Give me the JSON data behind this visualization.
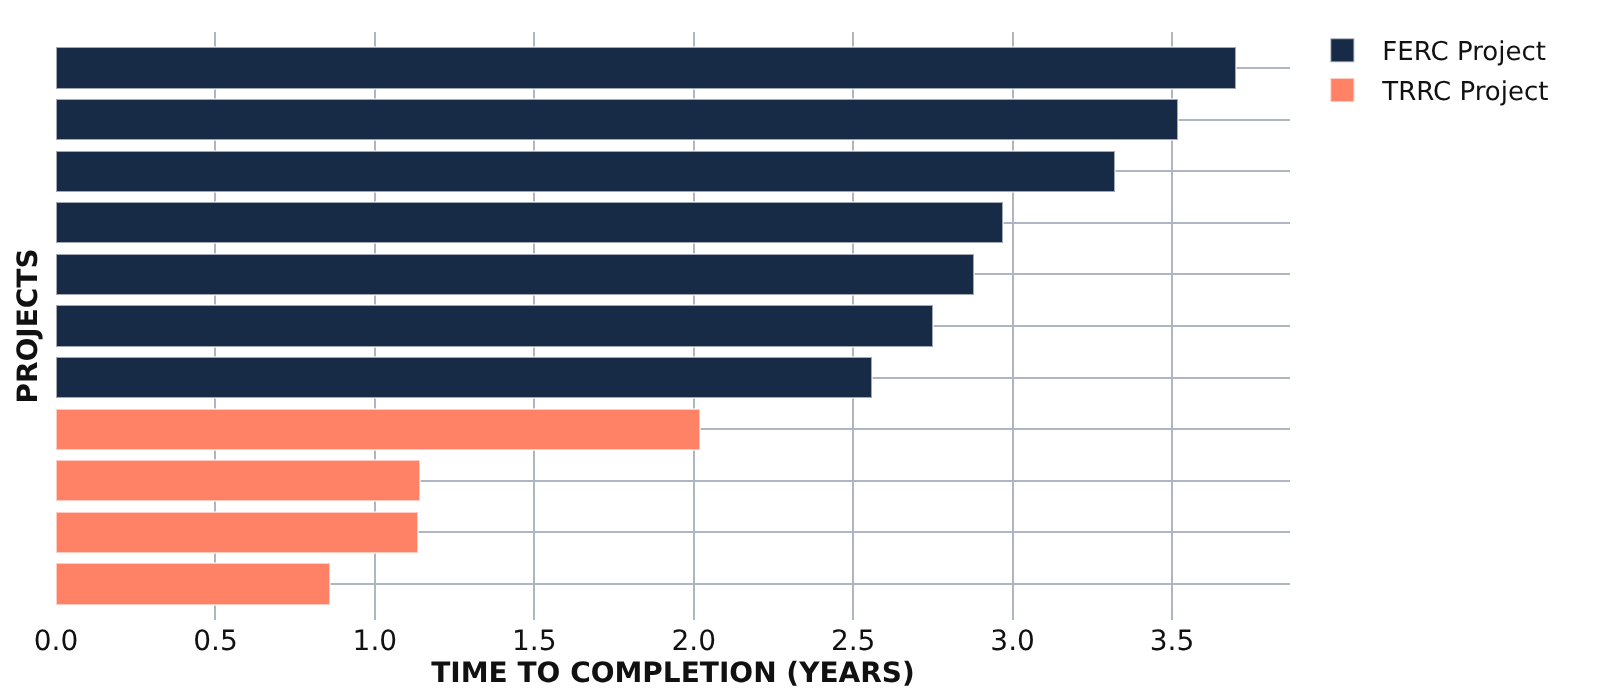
{
  "chart_data": {
    "type": "bar",
    "orientation": "horizontal",
    "ylabel": "PROJECTS",
    "xlabel": "TIME TO COMPLETION (YEARS)",
    "categories": [
      null,
      null,
      null,
      null,
      null,
      null,
      null,
      null,
      null,
      null,
      null
    ],
    "series": [
      {
        "name": "FERC Project",
        "color": "#172a46",
        "values": [
          3.7,
          3.52,
          3.32,
          2.97,
          2.88,
          2.75,
          2.56,
          null,
          null,
          null,
          null
        ]
      },
      {
        "name": "TRRC Project",
        "color": "#ff8166",
        "values": [
          null,
          null,
          null,
          null,
          null,
          null,
          null,
          2.02,
          1.14,
          1.135,
          0.86
        ]
      }
    ],
    "stacked": true,
    "xlim": [
      0,
      3.87
    ],
    "xticks": [
      {
        "value": 0,
        "label": "0.0"
      },
      0.5,
      {
        "value": 1,
        "label": "1.0"
      },
      1.5,
      {
        "value": 2,
        "label": "2.0"
      },
      2.5,
      {
        "value": 3,
        "label": "3.0"
      },
      3.5
    ],
    "grid": true,
    "legend": "top right",
    "tick_labels": "x"
  }
}
